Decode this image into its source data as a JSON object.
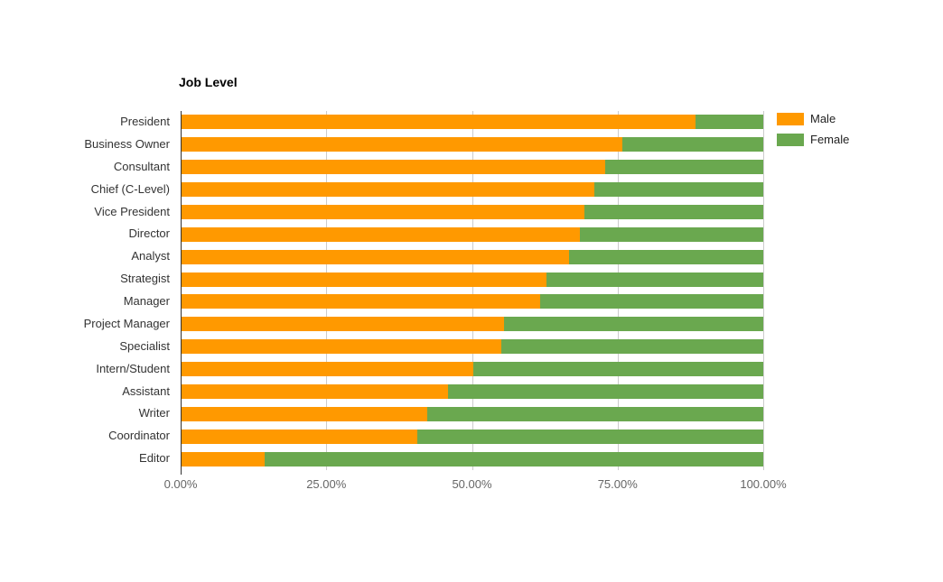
{
  "chart_data": {
    "type": "bar",
    "orientation": "horizontal",
    "stacked_percent": true,
    "title": "Job Level",
    "xlabel": "",
    "ylabel": "",
    "categories": [
      "President",
      "Business Owner",
      "Consultant",
      "Chief (C-Level)",
      "Vice President",
      "Director",
      "Analyst",
      "Strategist",
      "Manager",
      "Project Manager",
      "Specialist",
      "Intern/Student",
      "Assistant",
      "Writer",
      "Coordinator",
      "Editor"
    ],
    "series": [
      {
        "name": "Male",
        "color": "#ff9900",
        "values": [
          88.4,
          75.8,
          72.8,
          71.0,
          69.3,
          68.5,
          66.6,
          62.8,
          61.7,
          55.4,
          55.0,
          50.1,
          45.8,
          42.3,
          40.6,
          14.3
        ]
      },
      {
        "name": "Female",
        "color": "#6aa84f",
        "values": [
          11.6,
          24.2,
          27.2,
          29.0,
          30.7,
          31.5,
          33.4,
          37.2,
          38.3,
          44.6,
          45.0,
          49.9,
          54.2,
          57.7,
          59.4,
          85.7
        ]
      }
    ],
    "x_axis": {
      "min": 0,
      "max": 100,
      "tick_labels": [
        "0.00%",
        "25.00%",
        "50.00%",
        "75.00%",
        "100.00%"
      ],
      "tick_values": [
        0,
        25,
        50,
        75,
        100
      ],
      "grid": true
    },
    "legend": {
      "position": "right"
    },
    "colors": {
      "grid": "#cccccc",
      "axis_line": "#333333",
      "category_text": "#333333",
      "tick_text": "#666666",
      "title_text": "#000000"
    }
  }
}
